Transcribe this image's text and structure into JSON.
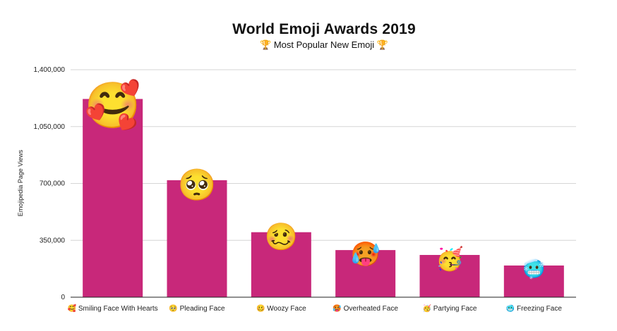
{
  "chart_data": {
    "type": "bar",
    "title": "World Emoji Awards 2019",
    "subtitle": "🏆 Most Popular New Emoji 🏆",
    "ylabel": "Emojipedia Page Views",
    "xlabel": "",
    "ylim": [
      0,
      1400000
    ],
    "y_ticks": [
      0,
      350000,
      700000,
      1050000,
      1400000
    ],
    "y_tick_labels": [
      "0",
      "350,000",
      "700,000",
      "1,050,000",
      "1,400,000"
    ],
    "grid": true,
    "bar_color": "#c8287a",
    "categories": [
      "Smiling Face With Hearts",
      "Pleading Face",
      "Woozy Face",
      "Overheated Face",
      "Partying Face",
      "Freezing Face"
    ],
    "category_emojis": [
      "🥰",
      "🥺",
      "🥴",
      "🥵",
      "🥳",
      "🥶"
    ],
    "values": [
      1220000,
      720000,
      400000,
      290000,
      260000,
      195000
    ]
  }
}
